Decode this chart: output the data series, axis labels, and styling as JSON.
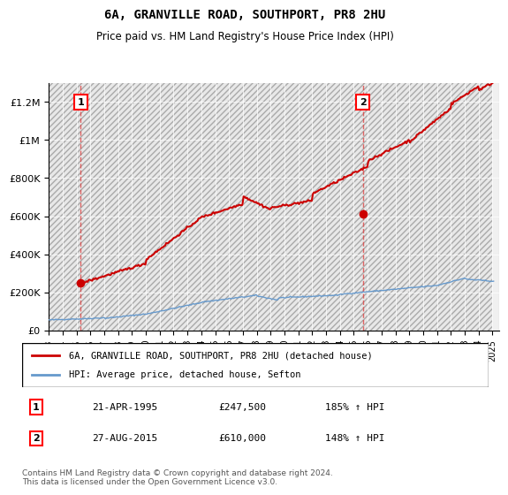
{
  "title": "6A, GRANVILLE ROAD, SOUTHPORT, PR8 2HU",
  "subtitle": "Price paid vs. HM Land Registry's House Price Index (HPI)",
  "ylim": [
    0,
    1300000
  ],
  "yticks": [
    0,
    200000,
    400000,
    600000,
    800000,
    1000000,
    1200000
  ],
  "ytick_labels": [
    "£0",
    "£200K",
    "£400K",
    "£600K",
    "£800K",
    "£1M",
    "£1.2M"
  ],
  "x_start_year": 1993,
  "x_end_year": 2025,
  "sale1_date": "21-APR-1995",
  "sale1_price": 247500,
  "sale1_hpi": "185% ↑ HPI",
  "sale1_label": "1",
  "sale1_x": 1995.3,
  "sale2_date": "27-AUG-2015",
  "sale2_price": 610000,
  "sale2_hpi": "148% ↑ HPI",
  "sale2_label": "2",
  "sale2_x": 2015.65,
  "line1_color": "#cc0000",
  "line2_color": "#6699cc",
  "hatch_color": "#cccccc",
  "dashed_line_color": "#dd4444",
  "legend_label1": "6A, GRANVILLE ROAD, SOUTHPORT, PR8 2HU (detached house)",
  "legend_label2": "HPI: Average price, detached house, Sefton",
  "footnote": "Contains HM Land Registry data © Crown copyright and database right 2024.\nThis data is licensed under the Open Government Licence v3.0.",
  "background_color": "#ffffff",
  "plot_bg_color": "#f0f0f0"
}
